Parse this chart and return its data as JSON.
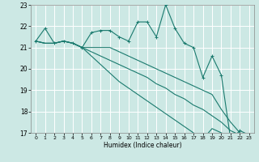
{
  "xlabel": "Humidex (Indice chaleur)",
  "background_color": "#cce8e4",
  "grid_color": "#ffffff",
  "line_color": "#1a7a6e",
  "xlim": [
    -0.5,
    23.5
  ],
  "ylim": [
    17,
    23
  ],
  "yticks": [
    17,
    18,
    19,
    20,
    21,
    22,
    23
  ],
  "xticks": [
    0,
    1,
    2,
    3,
    4,
    5,
    6,
    7,
    8,
    9,
    10,
    11,
    12,
    13,
    14,
    15,
    16,
    17,
    18,
    19,
    20,
    21,
    22,
    23
  ],
  "series": [
    [
      21.3,
      21.9,
      21.2,
      21.3,
      21.2,
      21.0,
      21.7,
      21.8,
      21.8,
      21.5,
      21.3,
      22.2,
      22.2,
      21.5,
      23.0,
      21.9,
      21.2,
      21.0,
      19.6,
      20.6,
      19.7,
      16.7,
      17.1,
      16.9
    ],
    [
      21.3,
      21.2,
      21.2,
      21.3,
      21.2,
      21.0,
      21.0,
      21.0,
      21.0,
      20.8,
      20.6,
      20.4,
      20.2,
      20.0,
      19.8,
      19.6,
      19.4,
      19.2,
      19.0,
      18.8,
      18.1,
      17.5,
      17.0,
      16.8
    ],
    [
      21.3,
      21.2,
      21.2,
      21.3,
      21.2,
      21.0,
      20.8,
      20.6,
      20.4,
      20.2,
      20.0,
      19.8,
      19.6,
      19.3,
      19.1,
      18.8,
      18.6,
      18.3,
      18.1,
      17.8,
      17.5,
      17.1,
      16.9,
      16.7
    ],
    [
      21.3,
      21.2,
      21.2,
      21.3,
      21.2,
      21.0,
      20.6,
      20.2,
      19.8,
      19.4,
      19.1,
      18.8,
      18.5,
      18.2,
      17.9,
      17.6,
      17.3,
      17.0,
      16.7,
      17.2,
      17.0,
      16.8,
      16.8,
      16.8
    ]
  ]
}
